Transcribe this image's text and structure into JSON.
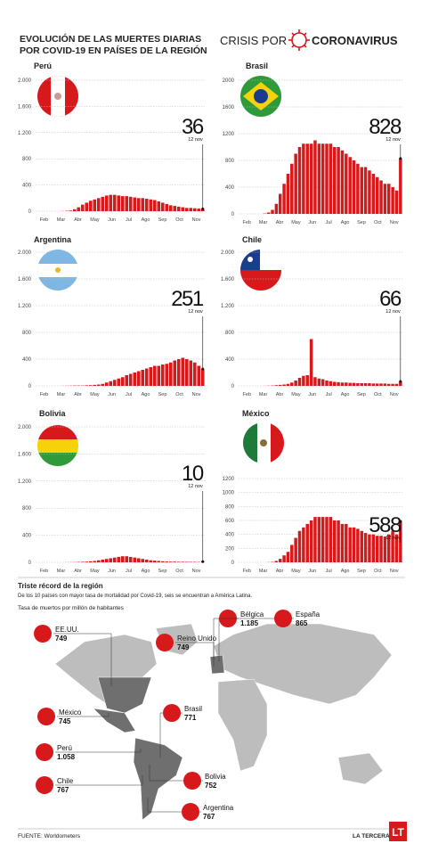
{
  "header": {
    "title_line1": "EVOLUCIÓN DE LAS MUERTES DIARIAS",
    "title_line2": "POR COVID-19 EN PAÍSES DE LA REGIÓN",
    "brand_left": "CRISIS POR",
    "brand_right": "CORONAVIRUS"
  },
  "chart_data": [
    {
      "type": "bar",
      "title": "Perú",
      "color": "#d7191c",
      "annotation": "12 nov",
      "ylim": [
        0,
        2000
      ],
      "yticks": [
        0,
        400,
        800,
        {
          "value": 1200,
          "label": "1.200"
        },
        {
          "value": 1600,
          "label": "1.600"
        },
        {
          "value": 2000,
          "label": "2.000"
        }
      ],
      "months": [
        "Feb",
        "Mar",
        "Abr",
        "May",
        "Jun",
        "Jul",
        "Ago",
        "Sep",
        "Oct",
        "Nov"
      ],
      "values": [
        0,
        0,
        2,
        5,
        10,
        30,
        60,
        100,
        130,
        160,
        180,
        200,
        220,
        240,
        250,
        250,
        240,
        230,
        230,
        220,
        210,
        200,
        200,
        190,
        180,
        170,
        150,
        130,
        110,
        90,
        80,
        70,
        60,
        50,
        50,
        45,
        40,
        36
      ]
    },
    {
      "type": "bar",
      "title": "Brasil",
      "color": "#d7191c",
      "annotation": "12 nov",
      "ylim": [
        0,
        2000
      ],
      "yticks": [
        0,
        400,
        800,
        1200,
        1600,
        2000
      ],
      "months": [
        "Feb",
        "Mar",
        "Abr",
        "May",
        "Jun",
        "Jul",
        "Ago",
        "Sep",
        "Oct",
        "Nov"
      ],
      "values": [
        0,
        0,
        5,
        20,
        60,
        150,
        300,
        450,
        600,
        750,
        900,
        1000,
        1050,
        1050,
        1050,
        1100,
        1050,
        1050,
        1050,
        1050,
        1000,
        1000,
        950,
        900,
        850,
        800,
        750,
        700,
        700,
        650,
        600,
        550,
        500,
        450,
        450,
        400,
        350,
        828
      ]
    },
    {
      "type": "bar",
      "title": "Argentina",
      "color": "#d7191c",
      "annotation": "12 nov",
      "ylim": [
        0,
        2000
      ],
      "yticks": [
        0,
        400,
        800,
        {
          "value": 1200,
          "label": "1.200"
        },
        {
          "value": 1600,
          "label": "1.600"
        },
        {
          "value": 2000,
          "label": "2.000"
        }
      ],
      "months": [
        "Feb",
        "Mar",
        "Abr",
        "May",
        "Jun",
        "Jul",
        "Ago",
        "Sep",
        "Oct",
        "Nov"
      ],
      "values": [
        0,
        0,
        1,
        2,
        3,
        5,
        5,
        5,
        8,
        10,
        15,
        20,
        30,
        50,
        70,
        90,
        110,
        130,
        160,
        180,
        200,
        220,
        240,
        260,
        280,
        300,
        300,
        320,
        330,
        350,
        380,
        400,
        420,
        400,
        380,
        350,
        300,
        251
      ]
    },
    {
      "type": "bar",
      "title": "Chile",
      "color": "#d7191c",
      "annotation": "12 nov",
      "ylim": [
        0,
        2000
      ],
      "yticks": [
        0,
        400,
        800,
        {
          "value": 1200,
          "label": "1.200"
        },
        {
          "value": 1600,
          "label": "1.600"
        },
        {
          "value": 2000,
          "label": "2.000"
        }
      ],
      "months": [
        "Feb",
        "Mar",
        "Abr",
        "May",
        "Jun",
        "Jul",
        "Ago",
        "Sep",
        "Oct",
        "Nov"
      ],
      "values": [
        0,
        0,
        1,
        3,
        5,
        10,
        15,
        20,
        30,
        50,
        80,
        120,
        150,
        160,
        700,
        130,
        110,
        100,
        80,
        70,
        60,
        55,
        50,
        50,
        45,
        45,
        40,
        40,
        40,
        40,
        35,
        35,
        35,
        35,
        30,
        30,
        30,
        66
      ]
    },
    {
      "type": "bar",
      "title": "Bolivia",
      "color": "#d7191c",
      "annotation": "12 nov",
      "ylim": [
        0,
        2000
      ],
      "yticks": [
        0,
        400,
        800,
        {
          "value": 1200,
          "label": "1.200"
        },
        {
          "value": 1600,
          "label": "1.600"
        },
        {
          "value": 2000,
          "label": "2.000"
        }
      ],
      "months": [
        "Feb",
        "Mar",
        "Abr",
        "May",
        "Jun",
        "Jul",
        "Ago",
        "Sep",
        "Oct",
        "Nov"
      ],
      "values": [
        0,
        0,
        0,
        1,
        2,
        3,
        5,
        8,
        10,
        15,
        20,
        30,
        40,
        50,
        60,
        70,
        80,
        90,
        90,
        80,
        70,
        60,
        50,
        40,
        30,
        25,
        20,
        15,
        12,
        10,
        10,
        8,
        8,
        7,
        6,
        6,
        5,
        10
      ]
    },
    {
      "type": "bar",
      "title": "México",
      "color": "#d7191c",
      "annotation": "12 nov",
      "ylim": [
        0,
        1200
      ],
      "yticks": [
        0,
        200,
        400,
        600,
        800,
        1000,
        1200
      ],
      "months": [
        "Feb",
        "Mar",
        "Abr",
        "May",
        "Jun",
        "Jul",
        "Ago",
        "Sep",
        "Oct",
        "Nov"
      ],
      "values": [
        0,
        0,
        0,
        2,
        5,
        20,
        50,
        100,
        150,
        250,
        350,
        450,
        500,
        550,
        600,
        650,
        650,
        650,
        650,
        650,
        600,
        600,
        550,
        550,
        500,
        500,
        480,
        450,
        420,
        400,
        400,
        380,
        380,
        370,
        400,
        450,
        400,
        588
      ]
    }
  ],
  "map": {
    "title": "Triste récord de la región",
    "subtitle": "De los 10 países con mayor tasa de mortalidad por Covid-19, seis se encuentran a América Latina.",
    "label": "Tasa de muertos por millón de habitantes",
    "items": [
      {
        "name": "EE.UU.",
        "value": 749
      },
      {
        "name": "Reino Unido",
        "value": 749
      },
      {
        "name": "Bélgica",
        "value": 1185,
        "value_label": "1.185"
      },
      {
        "name": "España",
        "value": 865
      },
      {
        "name": "México",
        "value": 745
      },
      {
        "name": "Brasil",
        "value": 771
      },
      {
        "name": "Perú",
        "value": 1058,
        "value_label": "1.058"
      },
      {
        "name": "Chile",
        "value": 767
      },
      {
        "name": "Bolivia",
        "value": 752
      },
      {
        "name": "Argentina",
        "value": 767
      }
    ]
  },
  "footer": {
    "source": "FUENTE: Worldometers",
    "brand": "LA TERCERA",
    "logo": "LT"
  }
}
